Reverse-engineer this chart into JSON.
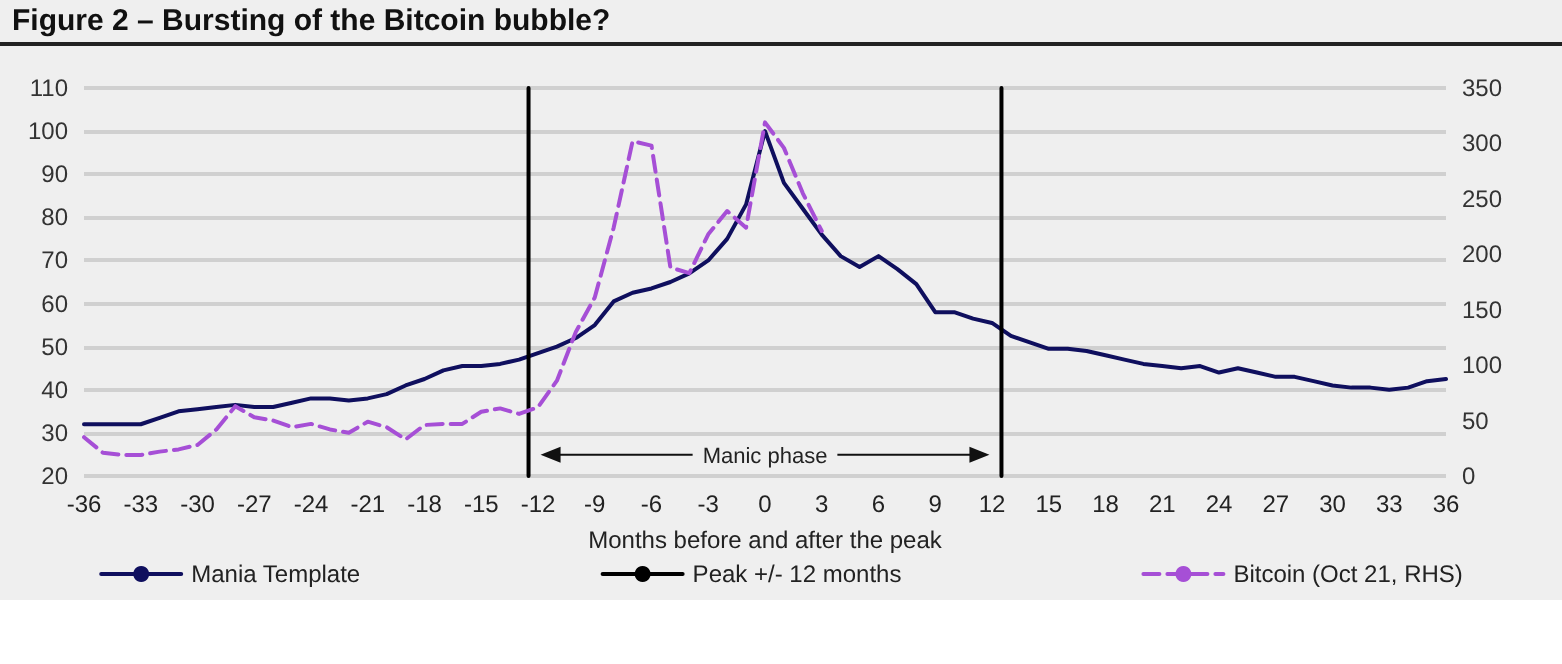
{
  "chart_data": {
    "type": "line",
    "title": "Figure 2 – Bursting of the Bitcoin bubble?",
    "xlabel": "Months before and after the peak",
    "annotations": [
      "Manic phase"
    ],
    "xlim": [
      -36,
      36
    ],
    "xticks": [
      -36,
      -33,
      -30,
      -27,
      -24,
      -21,
      -18,
      -15,
      -12,
      -9,
      -6,
      -3,
      0,
      3,
      6,
      9,
      12,
      15,
      18,
      21,
      24,
      27,
      30,
      33,
      36
    ],
    "ylim": [
      20,
      110
    ],
    "yticks": [
      20,
      30,
      40,
      50,
      60,
      70,
      80,
      90,
      100,
      110
    ],
    "y2lim": [
      0,
      350
    ],
    "y2ticks": [
      0,
      50,
      100,
      150,
      200,
      250,
      300,
      350
    ],
    "grid": "y",
    "legend": "bottom",
    "marker": "none",
    "series": [
      {
        "name": "Mania Template",
        "color": "#0f0f5e",
        "line_style": "solid",
        "x": [
          -36,
          -35,
          -34,
          -33,
          -32,
          -31,
          -30,
          -29,
          -28,
          -27,
          -26,
          -25,
          -24,
          -23,
          -22,
          -21,
          -20,
          -19,
          -18,
          -17,
          -16,
          -15,
          -14,
          -13,
          -12,
          -11,
          -10,
          -9,
          -8,
          -7,
          -6,
          -5,
          -4,
          -3,
          -2,
          -1,
          0,
          1,
          2,
          3,
          4,
          5,
          6,
          7,
          8,
          9,
          10,
          11,
          12,
          13,
          14,
          15,
          16,
          17,
          18,
          19,
          20,
          21,
          22,
          23,
          24,
          25,
          26,
          27,
          28,
          29,
          30,
          31,
          32,
          33,
          34,
          35,
          36
        ],
        "values": [
          32,
          32,
          32,
          32,
          33.5,
          35,
          35.5,
          36,
          36.5,
          36,
          36,
          37,
          38,
          38,
          37.5,
          38,
          39,
          41,
          42.5,
          44.5,
          45.5,
          45.5,
          46,
          47,
          48.5,
          50,
          52,
          55,
          60.5,
          62.5,
          63.5,
          65,
          67,
          70,
          75,
          83,
          100,
          88,
          82,
          76,
          71,
          68.5,
          71,
          68,
          64.5,
          58,
          58,
          56.5,
          55.5,
          52.5,
          51,
          49.5,
          49.5,
          49,
          48,
          47,
          46,
          45.5,
          45,
          45.5,
          44,
          45,
          44,
          43,
          43,
          42,
          41,
          40.5,
          40.5,
          40,
          40.5,
          42,
          42.5
        ]
      },
      {
        "name": "Peak +/- 12 months",
        "color": "#000000",
        "line_style": "solid",
        "x": [
          -12.5,
          -12.5,
          0,
          12.5,
          12.5
        ],
        "values": [
          20,
          110,
          null,
          110,
          20
        ]
      },
      {
        "name": "Bitcoin (Oct 21, RHS)",
        "color": "#a64fd6",
        "line_style": "dashed",
        "axis": "y2",
        "x": [
          -36,
          -35,
          -34,
          -33,
          -32,
          -31,
          -30,
          -29,
          -28,
          -27,
          -26,
          -25,
          -24,
          -23,
          -22,
          -21,
          -20,
          -19,
          -18,
          -17,
          -16,
          -15,
          -14,
          -13,
          -12,
          -11,
          -10,
          -9,
          -8,
          -7,
          -6,
          -5,
          -4,
          -3,
          -2,
          -1,
          0,
          1,
          2,
          3
        ],
        "values": [
          35,
          21,
          19,
          19,
          22,
          24,
          28,
          42,
          63,
          53,
          50,
          44,
          47,
          42,
          39,
          49,
          44,
          33,
          46,
          47,
          47,
          58,
          61,
          56,
          62,
          86,
          130,
          161,
          224,
          302,
          298,
          188,
          183,
          218,
          239,
          224,
          319,
          296,
          255,
          221
        ]
      }
    ]
  }
}
